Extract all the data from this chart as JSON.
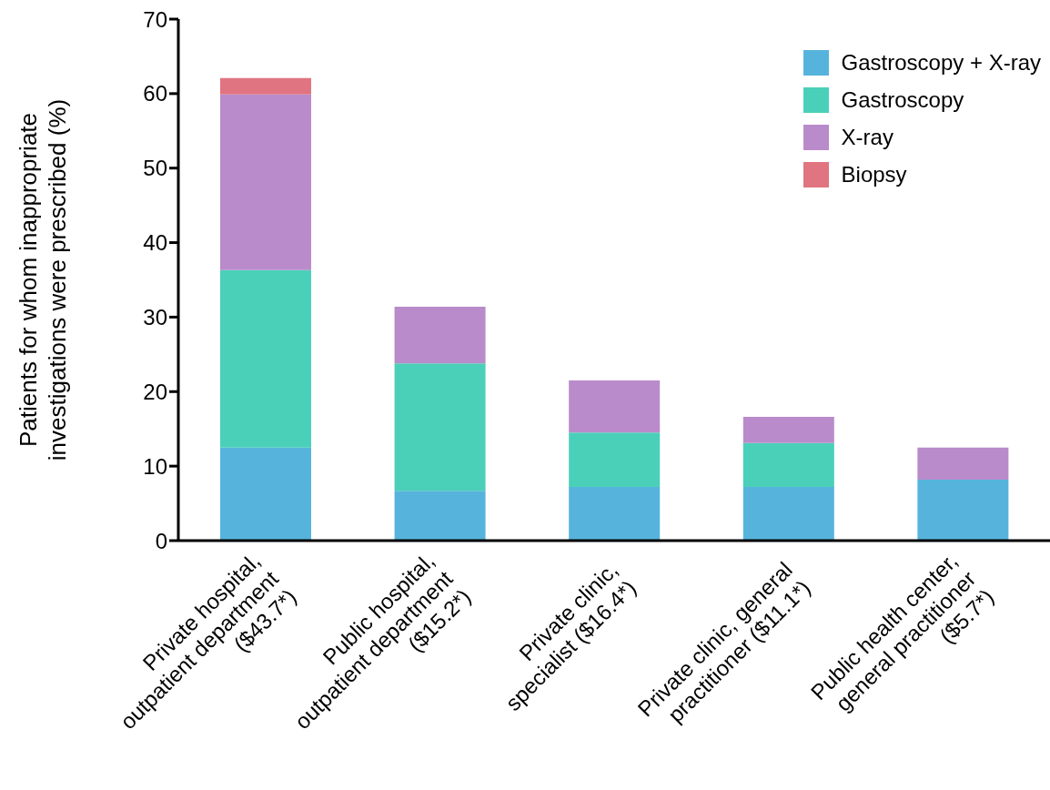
{
  "chart_data": {
    "type": "bar",
    "stacked": true,
    "ylabel": "Patients for whom inappropriate\ninvestigations were prescribed (%)",
    "categories": [
      "Private hospital,\noutpatient department\n($43.7*)",
      "Public hospital,\noutpatient department\n($15.2*)",
      "Private clinic,\nspecialist ($16.4*)",
      "Private clinic, general\npractitioner ($11.1*)",
      "Public health center,\ngeneral practitioner\n($5.7*)"
    ],
    "series": [
      {
        "name": "Gastroscopy + X-ray",
        "color": "#56b4dc",
        "values": [
          12.5,
          6.7,
          7.2,
          7.2,
          8.2
        ]
      },
      {
        "name": "Gastroscopy",
        "color": "#4ad0b8",
        "values": [
          23.8,
          17.1,
          7.3,
          5.9,
          0
        ]
      },
      {
        "name": "X-ray",
        "color": "#b98bcb",
        "values": [
          23.6,
          7.6,
          7.0,
          3.5,
          4.3
        ]
      },
      {
        "name": "Biopsy",
        "color": "#e07480",
        "values": [
          2.2,
          0,
          0,
          0,
          0
        ]
      }
    ],
    "ylim": [
      0,
      70
    ],
    "yticks": [
      0,
      10,
      20,
      30,
      40,
      50,
      60,
      70
    ],
    "grid": false,
    "legend": "top right"
  }
}
